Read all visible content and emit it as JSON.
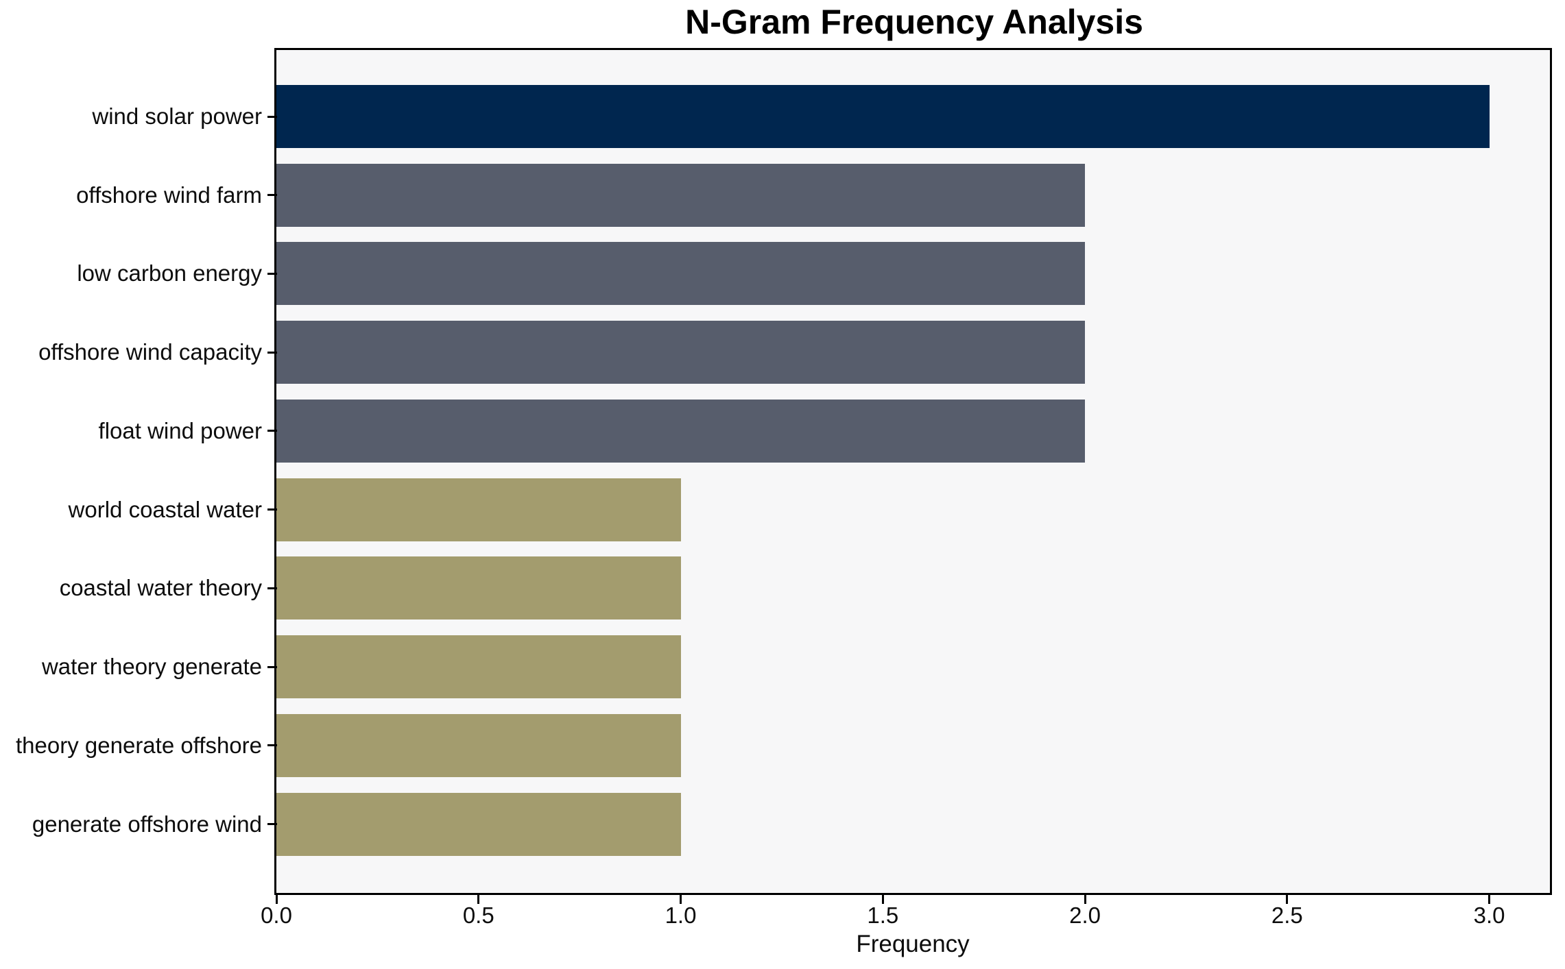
{
  "title": "N-Gram Frequency Analysis",
  "chart_data": {
    "type": "bar",
    "orientation": "horizontal",
    "title": "N-Gram Frequency Analysis",
    "xlabel": "Frequency",
    "ylabel": "",
    "categories": [
      "wind solar power",
      "offshore wind farm",
      "low carbon energy",
      "offshore wind capacity",
      "float wind power",
      "world coastal water",
      "coastal water theory",
      "water theory generate",
      "theory generate offshore",
      "generate offshore wind"
    ],
    "values": [
      3,
      2,
      2,
      2,
      2,
      1,
      1,
      1,
      1,
      1
    ],
    "bar_colors": [
      "#00264f",
      "#575d6c",
      "#575d6c",
      "#575d6c",
      "#575d6c",
      "#a39c6e",
      "#a39c6e",
      "#a39c6e",
      "#a39c6e",
      "#a39c6e"
    ],
    "xlim": [
      0,
      3.15
    ],
    "xtick_values": [
      0,
      0.5,
      1,
      1.5,
      2,
      2.5,
      3
    ],
    "xtick_labels": [
      "0.0",
      "0.5",
      "1.0",
      "1.5",
      "2.0",
      "2.5",
      "3.0"
    ],
    "grid": false,
    "legend": null,
    "plot_bg": "#f7f7f8",
    "figure_bg": "#ffffff",
    "spine_color": "#000000"
  }
}
